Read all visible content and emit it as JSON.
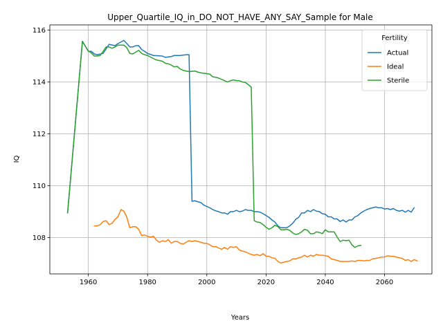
{
  "chart_data": {
    "type": "line",
    "title": "Upper_Quartile_IQ_in_DO_NOT_HAVE_ANY_SAY_Sample for Male",
    "xlabel": "Years",
    "ylabel": "IQ",
    "xlim": [
      1947,
      2076
    ],
    "ylim": [
      106.6,
      116.2
    ],
    "xticks": [
      1960,
      1980,
      2000,
      2020,
      2040,
      2060
    ],
    "yticks": [
      108,
      110,
      112,
      114,
      116
    ],
    "grid": true,
    "legend": {
      "title": "Fertility",
      "placement": "top-right"
    },
    "series": [
      {
        "name": "Actual",
        "color": "#1f77b4",
        "points": [
          [
            1953,
            108.95
          ],
          [
            1958,
            115.57
          ],
          [
            1960,
            115.18
          ],
          [
            1961,
            115.18
          ],
          [
            1962,
            115.08
          ],
          [
            1963,
            115.05
          ],
          [
            1965,
            115.1
          ],
          [
            1967,
            115.45
          ],
          [
            1969,
            115.4
          ],
          [
            1970,
            115.48
          ],
          [
            1972,
            115.6
          ],
          [
            1973,
            115.48
          ],
          [
            1974,
            115.35
          ],
          [
            1975,
            115.35
          ],
          [
            1976,
            115.4
          ],
          [
            1977,
            115.4
          ],
          [
            1978,
            115.25
          ],
          [
            1979,
            115.18
          ],
          [
            1980,
            115.1
          ],
          [
            1982,
            115.02
          ],
          [
            1985,
            115.0
          ],
          [
            1986,
            114.95
          ],
          [
            1988,
            114.98
          ],
          [
            1989,
            115.02
          ],
          [
            1991,
            115.02
          ],
          [
            1993,
            115.05
          ],
          [
            1994,
            115.05
          ],
          [
            1995,
            109.4
          ],
          [
            1996,
            109.42
          ],
          [
            1997,
            109.38
          ],
          [
            1998,
            109.35
          ],
          [
            1999,
            109.25
          ],
          [
            2000,
            109.2
          ],
          [
            2001,
            109.15
          ],
          [
            2002,
            109.08
          ],
          [
            2003,
            109.03
          ],
          [
            2004,
            109.0
          ],
          [
            2005,
            108.95
          ],
          [
            2006,
            108.95
          ],
          [
            2007,
            108.9
          ],
          [
            2008,
            109.0
          ],
          [
            2009,
            109.0
          ],
          [
            2010,
            109.05
          ],
          [
            2011,
            109.0
          ],
          [
            2012,
            109.02
          ],
          [
            2013,
            109.08
          ],
          [
            2014,
            109.05
          ],
          [
            2015,
            109.05
          ],
          [
            2016,
            109.0
          ],
          [
            2017,
            109.0
          ],
          [
            2018,
            108.98
          ],
          [
            2019,
            108.92
          ],
          [
            2020,
            108.85
          ],
          [
            2021,
            108.78
          ],
          [
            2022,
            108.68
          ],
          [
            2023,
            108.6
          ],
          [
            2024,
            108.45
          ],
          [
            2025,
            108.38
          ],
          [
            2026,
            108.38
          ],
          [
            2027,
            108.38
          ],
          [
            2028,
            108.45
          ],
          [
            2029,
            108.55
          ],
          [
            2030,
            108.7
          ],
          [
            2031,
            108.78
          ],
          [
            2032,
            108.95
          ],
          [
            2033,
            108.95
          ],
          [
            2034,
            109.05
          ],
          [
            2035,
            109.0
          ],
          [
            2036,
            109.08
          ],
          [
            2037,
            109.02
          ],
          [
            2038,
            109.0
          ],
          [
            2039,
            108.92
          ],
          [
            2040,
            108.9
          ],
          [
            2041,
            108.8
          ],
          [
            2042,
            108.8
          ],
          [
            2043,
            108.72
          ],
          [
            2044,
            108.72
          ],
          [
            2045,
            108.62
          ],
          [
            2046,
            108.68
          ],
          [
            2047,
            108.6
          ],
          [
            2048,
            108.68
          ],
          [
            2049,
            108.68
          ],
          [
            2050,
            108.8
          ],
          [
            2051,
            108.85
          ],
          [
            2052,
            108.95
          ],
          [
            2053,
            109.02
          ],
          [
            2054,
            109.08
          ],
          [
            2055,
            109.12
          ],
          [
            2056,
            109.15
          ],
          [
            2057,
            109.18
          ],
          [
            2058,
            109.15
          ],
          [
            2059,
            109.15
          ],
          [
            2060,
            109.1
          ],
          [
            2061,
            109.12
          ],
          [
            2062,
            109.08
          ],
          [
            2063,
            109.12
          ],
          [
            2064,
            109.05
          ],
          [
            2065,
            109.02
          ],
          [
            2066,
            109.05
          ],
          [
            2067,
            108.98
          ],
          [
            2068,
            109.05
          ],
          [
            2069,
            108.98
          ],
          [
            2070,
            109.15
          ]
        ]
      },
      {
        "name": "Ideal",
        "color": "#ff7f0e",
        "points": [
          [
            1962,
            108.45
          ],
          [
            1963,
            108.45
          ],
          [
            1964,
            108.5
          ],
          [
            1965,
            108.62
          ],
          [
            1966,
            108.65
          ],
          [
            1967,
            108.5
          ],
          [
            1968,
            108.55
          ],
          [
            1969,
            108.7
          ],
          [
            1970,
            108.8
          ],
          [
            1971,
            109.08
          ],
          [
            1972,
            109.02
          ],
          [
            1973,
            108.78
          ],
          [
            1974,
            108.38
          ],
          [
            1975,
            108.42
          ],
          [
            1976,
            108.42
          ],
          [
            1977,
            108.32
          ],
          [
            1978,
            108.08
          ],
          [
            1979,
            108.1
          ],
          [
            1980,
            108.05
          ],
          [
            1981,
            108.02
          ],
          [
            1982,
            108.05
          ],
          [
            1983,
            107.9
          ],
          [
            1984,
            107.82
          ],
          [
            1985,
            107.88
          ],
          [
            1986,
            107.85
          ],
          [
            1987,
            107.92
          ],
          [
            1988,
            107.78
          ],
          [
            1989,
            107.85
          ],
          [
            1990,
            107.85
          ],
          [
            1991,
            107.78
          ],
          [
            1992,
            107.75
          ],
          [
            1993,
            107.82
          ],
          [
            1994,
            107.88
          ],
          [
            1995,
            107.85
          ],
          [
            1996,
            107.88
          ],
          [
            1997,
            107.85
          ],
          [
            1998,
            107.82
          ],
          [
            1999,
            107.78
          ],
          [
            2000,
            107.78
          ],
          [
            2001,
            107.72
          ],
          [
            2002,
            107.65
          ],
          [
            2003,
            107.65
          ],
          [
            2004,
            107.6
          ],
          [
            2005,
            107.55
          ],
          [
            2006,
            107.62
          ],
          [
            2007,
            107.55
          ],
          [
            2008,
            107.65
          ],
          [
            2009,
            107.62
          ],
          [
            2010,
            107.65
          ],
          [
            2011,
            107.52
          ],
          [
            2012,
            107.48
          ],
          [
            2013,
            107.45
          ],
          [
            2014,
            107.4
          ],
          [
            2015,
            107.35
          ],
          [
            2016,
            107.32
          ],
          [
            2017,
            107.35
          ],
          [
            2018,
            107.3
          ],
          [
            2019,
            107.38
          ],
          [
            2020,
            107.28
          ],
          [
            2021,
            107.28
          ],
          [
            2022,
            107.22
          ],
          [
            2023,
            107.2
          ],
          [
            2024,
            107.08
          ],
          [
            2025,
            107.02
          ],
          [
            2026,
            107.05
          ],
          [
            2027,
            107.08
          ],
          [
            2028,
            107.1
          ],
          [
            2029,
            107.18
          ],
          [
            2030,
            107.18
          ],
          [
            2031,
            107.22
          ],
          [
            2032,
            107.25
          ],
          [
            2033,
            107.32
          ],
          [
            2034,
            107.25
          ],
          [
            2035,
            107.32
          ],
          [
            2036,
            107.28
          ],
          [
            2037,
            107.35
          ],
          [
            2038,
            107.32
          ],
          [
            2039,
            107.32
          ],
          [
            2040,
            107.3
          ],
          [
            2041,
            107.28
          ],
          [
            2042,
            107.18
          ],
          [
            2043,
            107.15
          ],
          [
            2044,
            107.12
          ],
          [
            2045,
            107.08
          ],
          [
            2046,
            107.08
          ],
          [
            2047,
            107.08
          ],
          [
            2048,
            107.08
          ],
          [
            2049,
            107.1
          ],
          [
            2050,
            107.08
          ],
          [
            2051,
            107.12
          ],
          [
            2052,
            107.12
          ],
          [
            2053,
            107.1
          ],
          [
            2054,
            107.12
          ],
          [
            2055,
            107.12
          ],
          [
            2056,
            107.18
          ],
          [
            2057,
            107.2
          ],
          [
            2058,
            107.22
          ],
          [
            2059,
            107.25
          ],
          [
            2060,
            107.25
          ],
          [
            2061,
            107.3
          ],
          [
            2062,
            107.28
          ],
          [
            2063,
            107.28
          ],
          [
            2064,
            107.25
          ],
          [
            2065,
            107.22
          ],
          [
            2066,
            107.2
          ],
          [
            2067,
            107.12
          ],
          [
            2068,
            107.15
          ],
          [
            2069,
            107.08
          ],
          [
            2070,
            107.15
          ],
          [
            2071,
            107.1
          ]
        ]
      },
      {
        "name": "Sterile",
        "color": "#2ca02c",
        "points": [
          [
            1953,
            108.95
          ],
          [
            1958,
            115.55
          ],
          [
            1960,
            115.2
          ],
          [
            1961,
            115.12
          ],
          [
            1962,
            115.0
          ],
          [
            1963,
            115.0
          ],
          [
            1964,
            115.02
          ],
          [
            1966,
            115.35
          ],
          [
            1967,
            115.35
          ],
          [
            1968,
            115.3
          ],
          [
            1969,
            115.35
          ],
          [
            1970,
            115.42
          ],
          [
            1972,
            115.42
          ],
          [
            1973,
            115.32
          ],
          [
            1974,
            115.1
          ],
          [
            1975,
            115.08
          ],
          [
            1976,
            115.15
          ],
          [
            1977,
            115.22
          ],
          [
            1978,
            115.1
          ],
          [
            1979,
            115.05
          ],
          [
            1980,
            115.02
          ],
          [
            1982,
            114.9
          ],
          [
            1983,
            114.85
          ],
          [
            1985,
            114.8
          ],
          [
            1986,
            114.72
          ],
          [
            1987,
            114.7
          ],
          [
            1988,
            114.65
          ],
          [
            1989,
            114.58
          ],
          [
            1990,
            114.6
          ],
          [
            1991,
            114.5
          ],
          [
            1992,
            114.45
          ],
          [
            1993,
            114.42
          ],
          [
            1994,
            114.4
          ],
          [
            1996,
            114.42
          ],
          [
            1997,
            114.38
          ],
          [
            1998,
            114.35
          ],
          [
            2000,
            114.32
          ],
          [
            2001,
            114.3
          ],
          [
            2002,
            114.2
          ],
          [
            2003,
            114.18
          ],
          [
            2004,
            114.15
          ],
          [
            2005,
            114.1
          ],
          [
            2006,
            114.05
          ],
          [
            2007,
            114.0
          ],
          [
            2008,
            114.05
          ],
          [
            2009,
            114.08
          ],
          [
            2010,
            114.05
          ],
          [
            2011,
            114.05
          ],
          [
            2012,
            114.0
          ],
          [
            2013,
            113.98
          ],
          [
            2014,
            113.9
          ],
          [
            2015,
            113.8
          ],
          [
            2016,
            108.65
          ],
          [
            2017,
            108.6
          ],
          [
            2018,
            108.58
          ],
          [
            2019,
            108.5
          ],
          [
            2020,
            108.4
          ],
          [
            2021,
            108.32
          ],
          [
            2022,
            108.38
          ],
          [
            2023,
            108.48
          ],
          [
            2024,
            108.42
          ],
          [
            2025,
            108.3
          ],
          [
            2026,
            108.3
          ],
          [
            2027,
            108.32
          ],
          [
            2028,
            108.28
          ],
          [
            2029,
            108.18
          ],
          [
            2030,
            108.12
          ],
          [
            2031,
            108.15
          ],
          [
            2032,
            108.22
          ],
          [
            2033,
            108.32
          ],
          [
            2034,
            108.28
          ],
          [
            2035,
            108.15
          ],
          [
            2036,
            108.15
          ],
          [
            2037,
            108.22
          ],
          [
            2038,
            108.2
          ],
          [
            2039,
            108.15
          ],
          [
            2040,
            108.3
          ],
          [
            2041,
            108.22
          ],
          [
            2042,
            108.22
          ],
          [
            2043,
            108.22
          ],
          [
            2044,
            108.02
          ],
          [
            2045,
            107.85
          ],
          [
            2046,
            107.9
          ],
          [
            2047,
            107.88
          ],
          [
            2048,
            107.9
          ],
          [
            2049,
            107.72
          ],
          [
            2050,
            107.62
          ],
          [
            2051,
            107.68
          ],
          [
            2052,
            107.7
          ]
        ]
      }
    ]
  }
}
